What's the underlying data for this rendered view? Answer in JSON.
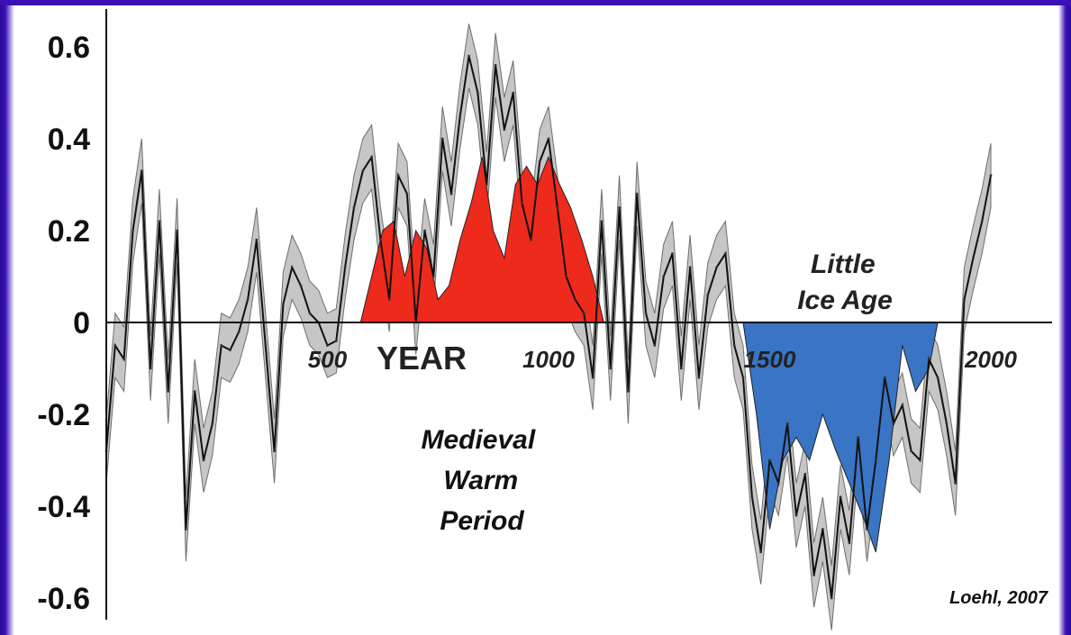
{
  "chart_data": {
    "type": "area",
    "title": "",
    "xlabel": "YEAR",
    "ylabel": "",
    "xlim": [
      0,
      2000
    ],
    "ylim": [
      -0.65,
      0.65
    ],
    "x_ticks": [
      "500",
      "1000",
      "1500",
      "2000"
    ],
    "y_ticks": [
      "0.6",
      "0.4",
      "0.2",
      "0",
      "-0.2",
      "-0.4",
      "-0.6"
    ],
    "grid": false,
    "legend": "none",
    "series": [
      {
        "color": "#111111",
        "envelope_color": "#bdbdbd",
        "x": [
          0,
          20,
          40,
          60,
          80,
          100,
          120,
          140,
          160,
          180,
          200,
          220,
          240,
          260,
          280,
          300,
          320,
          340,
          360,
          380,
          400,
          420,
          440,
          460,
          480,
          500,
          520,
          540,
          560,
          580,
          600,
          620,
          640,
          660,
          680,
          700,
          720,
          740,
          760,
          780,
          800,
          820,
          840,
          860,
          880,
          900,
          920,
          940,
          960,
          980,
          1000,
          1020,
          1040,
          1060,
          1080,
          1100,
          1120,
          1140,
          1160,
          1180,
          1200,
          1220,
          1240,
          1260,
          1280,
          1300,
          1320,
          1340,
          1360,
          1380,
          1400,
          1420,
          1440,
          1460,
          1480,
          1500,
          1520,
          1540,
          1560,
          1580,
          1600,
          1620,
          1640,
          1660,
          1680,
          1700,
          1720,
          1740,
          1760,
          1780,
          1800,
          1820,
          1840,
          1860,
          1880,
          1900,
          1920,
          1940,
          1960,
          1980,
          2000
        ],
        "values": [
          -0.28,
          -0.05,
          -0.08,
          0.2,
          0.33,
          -0.1,
          0.22,
          -0.15,
          0.2,
          -0.45,
          -0.15,
          -0.3,
          -0.22,
          -0.05,
          -0.06,
          -0.02,
          0.05,
          0.18,
          -0.05,
          -0.28,
          0.04,
          0.12,
          0.08,
          0.02,
          0.0,
          -0.05,
          -0.04,
          0.12,
          0.25,
          0.33,
          0.36,
          0.18,
          0.05,
          0.32,
          0.28,
          0.0,
          0.2,
          0.1,
          0.4,
          0.28,
          0.45,
          0.58,
          0.5,
          0.3,
          0.56,
          0.42,
          0.5,
          0.26,
          0.18,
          0.35,
          0.4,
          0.25,
          0.1,
          0.05,
          0.02,
          -0.12,
          0.22,
          -0.1,
          0.25,
          -0.15,
          0.28,
          0.02,
          -0.05,
          0.1,
          0.15,
          -0.1,
          0.12,
          -0.12,
          0.06,
          0.12,
          0.15,
          -0.05,
          -0.12,
          -0.38,
          -0.5,
          -0.3,
          -0.35,
          -0.22,
          -0.42,
          -0.33,
          -0.55,
          -0.45,
          -0.6,
          -0.38,
          -0.48,
          -0.25,
          -0.45,
          -0.3,
          -0.12,
          -0.22,
          -0.18,
          -0.28,
          -0.3,
          -0.08,
          -0.12,
          -0.22,
          -0.35,
          0.05,
          0.14,
          0.22,
          0.32
        ]
      }
    ],
    "highlight_regions": [
      {
        "color": "#ee2a1c",
        "x": [
          575,
          600,
          625,
          650,
          675,
          700,
          725,
          750,
          775,
          800,
          825,
          850,
          875,
          900,
          925,
          950,
          975,
          1000,
          1025,
          1050,
          1075,
          1100,
          1125
        ],
        "values": [
          0.0,
          0.1,
          0.2,
          0.22,
          0.1,
          0.2,
          0.16,
          0.05,
          0.08,
          0.18,
          0.26,
          0.36,
          0.2,
          0.14,
          0.3,
          0.34,
          0.3,
          0.36,
          0.3,
          0.25,
          0.18,
          0.1,
          0.0
        ]
      },
      {
        "color": "#3a74c4",
        "x": [
          1440,
          1470,
          1500,
          1530,
          1560,
          1590,
          1620,
          1650,
          1680,
          1710,
          1740,
          1770,
          1800,
          1830,
          1860,
          1880
        ],
        "values": [
          0.0,
          -0.2,
          -0.45,
          -0.3,
          -0.25,
          -0.3,
          -0.2,
          -0.28,
          -0.35,
          -0.42,
          -0.5,
          -0.3,
          -0.05,
          -0.15,
          -0.1,
          0.0
        ]
      }
    ],
    "annotations": [
      "Medieval\nWarm\nPeriod",
      "Little\nIce Age",
      "Loehl, 2007"
    ]
  }
}
